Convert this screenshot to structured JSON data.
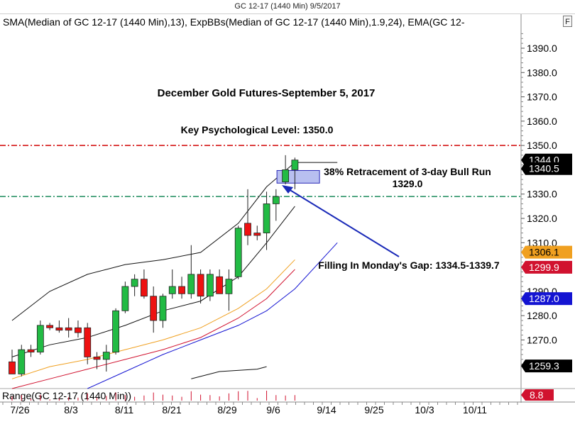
{
  "window_title": "GC 12-17 (1440 Min)  9/5/2017",
  "indicator_legend": "SMA(Median of GC 12-17 (1440 Min),13), ExpBBs(Median of GC 12-17 (1440 Min),1.9,24), EMA(GC 12-",
  "format_button": "F",
  "chart_data": {
    "type": "candlestick",
    "title": "December Gold Futures-September 5, 2017",
    "ylim": [
      1250,
      1397
    ],
    "y_ticks": [
      1260,
      1270,
      1280,
      1290,
      1300,
      1310,
      1320,
      1330,
      1340,
      1350,
      1360,
      1370,
      1380,
      1390
    ],
    "x_tick_labels": [
      "7/26",
      "8/3",
      "8/11",
      "8/21",
      "8/29",
      "9/6",
      "9/14",
      "9/25",
      "10/3",
      "10/11"
    ],
    "candles": [
      {
        "o": 1261,
        "h": 1266,
        "l": 1256,
        "c": 1256
      },
      {
        "o": 1256,
        "h": 1268,
        "l": 1255,
        "c": 1266
      },
      {
        "o": 1266,
        "h": 1268,
        "l": 1263,
        "c": 1265
      },
      {
        "o": 1265,
        "h": 1278,
        "l": 1264,
        "c": 1276
      },
      {
        "o": 1276,
        "h": 1277,
        "l": 1274,
        "c": 1275
      },
      {
        "o": 1275,
        "h": 1278,
        "l": 1273,
        "c": 1274
      },
      {
        "o": 1275,
        "h": 1279,
        "l": 1271,
        "c": 1274
      },
      {
        "o": 1275,
        "h": 1278,
        "l": 1271,
        "c": 1273
      },
      {
        "o": 1275,
        "h": 1277,
        "l": 1260,
        "c": 1263
      },
      {
        "o": 1263,
        "h": 1265,
        "l": 1258,
        "c": 1262
      },
      {
        "o": 1262,
        "h": 1268,
        "l": 1257,
        "c": 1265
      },
      {
        "o": 1265,
        "h": 1283,
        "l": 1264,
        "c": 1282
      },
      {
        "o": 1282,
        "h": 1294,
        "l": 1281,
        "c": 1292
      },
      {
        "o": 1292,
        "h": 1297,
        "l": 1288,
        "c": 1295
      },
      {
        "o": 1295,
        "h": 1299,
        "l": 1287,
        "c": 1288
      },
      {
        "o": 1288,
        "h": 1292,
        "l": 1273,
        "c": 1278
      },
      {
        "o": 1278,
        "h": 1289,
        "l": 1275,
        "c": 1288
      },
      {
        "o": 1289,
        "h": 1299,
        "l": 1287,
        "c": 1292
      },
      {
        "o": 1292,
        "h": 1296,
        "l": 1287,
        "c": 1289
      },
      {
        "o": 1289,
        "h": 1309,
        "l": 1287,
        "c": 1297
      },
      {
        "o": 1297,
        "h": 1299,
        "l": 1285,
        "c": 1288
      },
      {
        "o": 1288,
        "h": 1299,
        "l": 1286,
        "c": 1297
      },
      {
        "o": 1296,
        "h": 1299,
        "l": 1289,
        "c": 1289
      },
      {
        "o": 1289,
        "h": 1299,
        "l": 1282,
        "c": 1295
      },
      {
        "o": 1296,
        "h": 1317,
        "l": 1295,
        "c": 1316
      },
      {
        "o": 1318,
        "h": 1332,
        "l": 1309,
        "c": 1313
      },
      {
        "o": 1314,
        "h": 1317,
        "l": 1311,
        "c": 1313
      },
      {
        "o": 1314,
        "h": 1331,
        "l": 1307,
        "c": 1326
      },
      {
        "o": 1326,
        "h": 1332,
        "l": 1319,
        "c": 1329
      },
      {
        "o": 1335,
        "h": 1346,
        "l": 1334,
        "c": 1340
      },
      {
        "o": 1340,
        "h": 1345,
        "l": 1332,
        "c": 1344
      }
    ],
    "price_labels": [
      {
        "value": 1344.0,
        "text": "1344.0",
        "bg": "#000000",
        "fg": "#ffffff"
      },
      {
        "value": 1340.5,
        "text": "1340.5",
        "bg": "#000000",
        "fg": "#ffffff"
      },
      {
        "value": 1306.1,
        "text": "1306.1",
        "bg": "#f0a020",
        "fg": "#000000"
      },
      {
        "value": 1299.9,
        "text": "1299.9",
        "bg": "#d1122f",
        "fg": "#ffffff"
      },
      {
        "value": 1287.0,
        "text": "1287.0",
        "bg": "#1414d2",
        "fg": "#ffffff"
      },
      {
        "value": 1259.3,
        "text": "1259.3",
        "bg": "#000000",
        "fg": "#ffffff"
      }
    ],
    "levels": [
      {
        "value": 1350.0,
        "color": "#d10000",
        "style": "dash-dot"
      },
      {
        "value": 1329.0,
        "color": "#1a8a5a",
        "style": "dash-dot"
      }
    ],
    "gap_zone": [
      1334.5,
      1339.7
    ],
    "annotations": {
      "key_level": "Key Psychological Level: 1350.0",
      "retracement_line1": "38% Retracement of 3-day Bull Run",
      "retracement_line2": "1329.0",
      "gap_note": "Filling In Monday's Gap: 1334.5-1339.7"
    },
    "lower_panel": {
      "label": "Range(GC 12-17 (1440 Min))",
      "value_label": "8.8",
      "value_bg": "#d1122f"
    },
    "colors": {
      "up": "#22bb44",
      "down": "#ee1111",
      "sma": "#111111",
      "ema_orange": "#f0a020",
      "ema_red": "#d1122f",
      "ema_blue": "#1414d2",
      "arrow": "#1a2ab8",
      "gap_fill": "#b8bff0"
    }
  }
}
